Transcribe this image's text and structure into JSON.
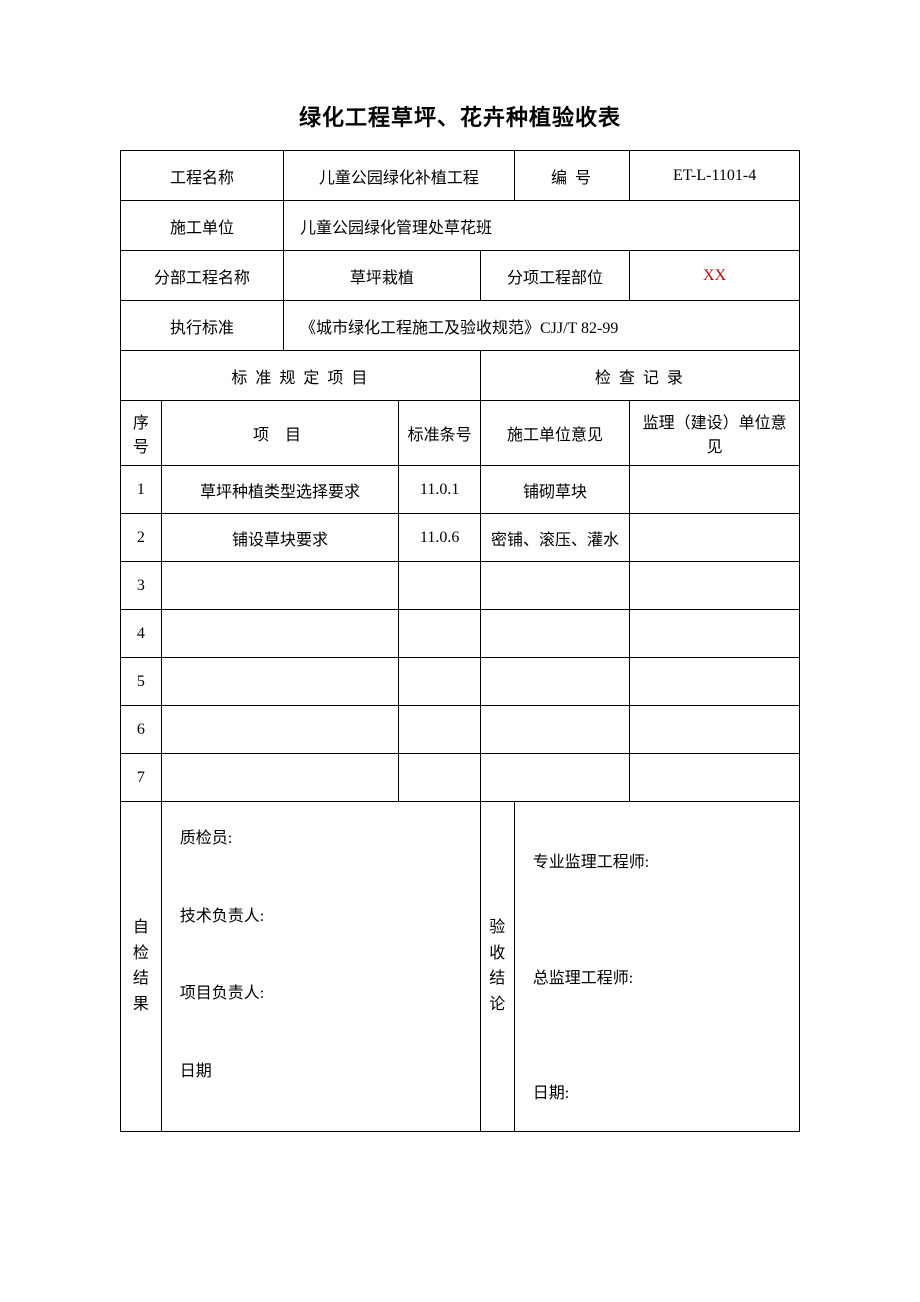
{
  "title": "绿化工程草坪、花卉种植验收表",
  "header": {
    "project_name_label": "工程名称",
    "project_name_value": "儿童公园绿化补植工程",
    "number_label": "编  号",
    "number_value": "ET-L-1101-4",
    "construction_unit_label": "施工单位",
    "construction_unit_value": "儿童公园绿化管理处草花班",
    "subproject_name_label": "分部工程名称",
    "subproject_name_value": "草坪栽植",
    "item_part_label": "分项工程部位",
    "item_part_value": "XX",
    "standard_label": "执行标准",
    "standard_value": "《城市绿化工程施工及验收规范》CJJ/T   82-99"
  },
  "section_headers": {
    "standard_items": "标 准 规 定 项 目",
    "inspection_record": "检 查 记 录",
    "seq": "序号",
    "item": "项    目",
    "clause": "标准条号",
    "construction_opinion": "施工单位意见",
    "supervision_opinion": "监理（建设）单位意见"
  },
  "rows": [
    {
      "seq": "1",
      "item": "草坪种植类型选择要求",
      "clause": "11.0.1",
      "opinion": "铺砌草块",
      "sup": ""
    },
    {
      "seq": "2",
      "item": "铺设草块要求",
      "clause": "11.0.6",
      "opinion": "密铺、滚压、灌水",
      "sup": ""
    },
    {
      "seq": "3",
      "item": "",
      "clause": "",
      "opinion": "",
      "sup": ""
    },
    {
      "seq": "4",
      "item": "",
      "clause": "",
      "opinion": "",
      "sup": ""
    },
    {
      "seq": "5",
      "item": "",
      "clause": "",
      "opinion": "",
      "sup": ""
    },
    {
      "seq": "6",
      "item": "",
      "clause": "",
      "opinion": "",
      "sup": ""
    },
    {
      "seq": "7",
      "item": "",
      "clause": "",
      "opinion": "",
      "sup": ""
    }
  ],
  "signatures": {
    "self_check_label": "自检结果",
    "self_check_lines": {
      "inspector": "质检员:",
      "tech_lead": "技术负责人:",
      "project_lead": "项目负责人:",
      "date": "日期"
    },
    "acceptance_label": "验收结论",
    "acceptance_lines": {
      "spec_engineer": "专业监理工程师:",
      "chief_engineer": "总监理工程师:",
      "date": "日期:"
    }
  },
  "colors": {
    "border": "#000000",
    "text": "#000000",
    "red": "#c00000",
    "background": "#ffffff"
  },
  "typography": {
    "title_fontsize_pt": 16,
    "body_fontsize_pt": 12,
    "font_family": "SimSun"
  },
  "layout": {
    "col_widths_pct": [
      6,
      18,
      17,
      12,
      5,
      17,
      25
    ]
  }
}
